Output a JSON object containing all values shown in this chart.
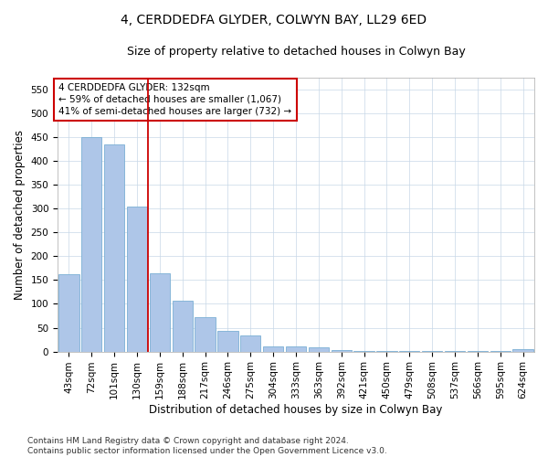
{
  "title": "4, CERDDEDFA GLYDER, COLWYN BAY, LL29 6ED",
  "subtitle": "Size of property relative to detached houses in Colwyn Bay",
  "xlabel": "Distribution of detached houses by size in Colwyn Bay",
  "ylabel": "Number of detached properties",
  "categories": [
    "43sqm",
    "72sqm",
    "101sqm",
    "130sqm",
    "159sqm",
    "188sqm",
    "217sqm",
    "246sqm",
    "275sqm",
    "304sqm",
    "333sqm",
    "363sqm",
    "392sqm",
    "421sqm",
    "450sqm",
    "479sqm",
    "508sqm",
    "537sqm",
    "566sqm",
    "595sqm",
    "624sqm"
  ],
  "values": [
    162,
    450,
    435,
    305,
    165,
    107,
    73,
    44,
    33,
    10,
    10,
    8,
    4,
    2,
    2,
    2,
    2,
    2,
    2,
    2,
    5
  ],
  "bar_color": "#aec6e8",
  "bar_edge_color": "#7bafd4",
  "vline_color": "#cc0000",
  "vline_x_index": 3,
  "annotation_text": "4 CERDDEDFA GLYDER: 132sqm\n← 59% of detached houses are smaller (1,067)\n41% of semi-detached houses are larger (732) →",
  "annotation_box_color": "#ffffff",
  "annotation_box_edge_color": "#cc0000",
  "ylim": [
    0,
    575
  ],
  "yticks": [
    0,
    50,
    100,
    150,
    200,
    250,
    300,
    350,
    400,
    450,
    500,
    550
  ],
  "footer": "Contains HM Land Registry data © Crown copyright and database right 2024.\nContains public sector information licensed under the Open Government Licence v3.0.",
  "title_fontsize": 10,
  "subtitle_fontsize": 9,
  "xlabel_fontsize": 8.5,
  "ylabel_fontsize": 8.5,
  "tick_fontsize": 7.5,
  "footer_fontsize": 6.5,
  "annotation_fontsize": 7.5
}
